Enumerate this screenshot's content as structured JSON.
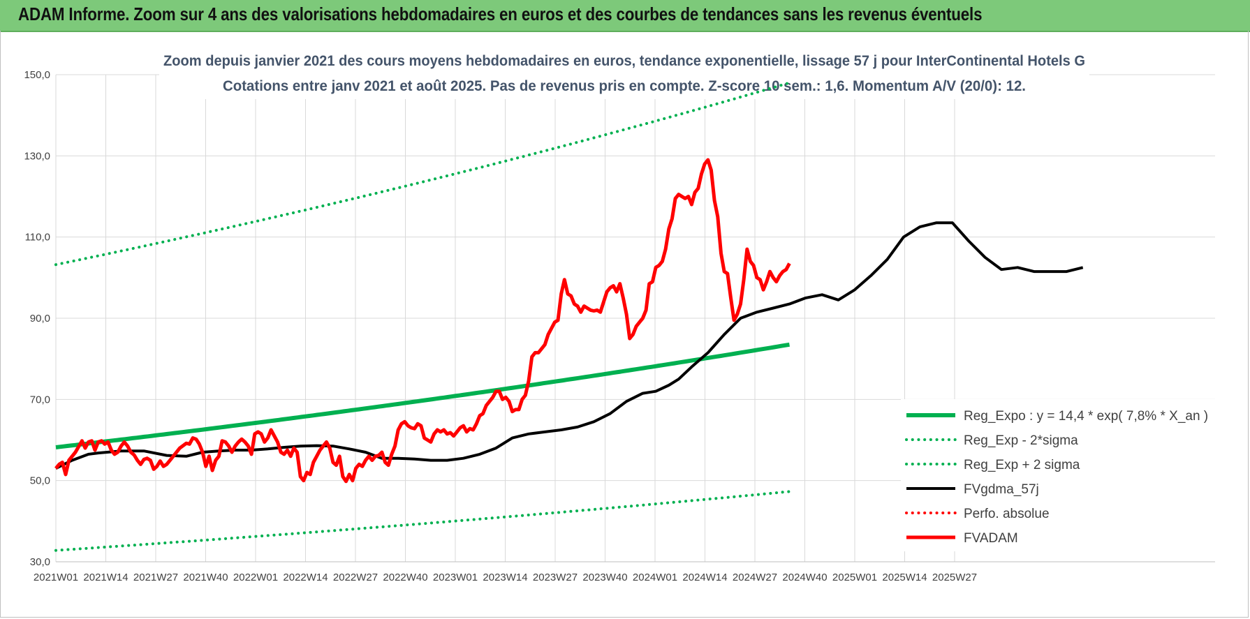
{
  "header": {
    "title": "ADAM Informe. Zoom sur 4 ans des valorisations hebdomadaires en euros et des courbes de tendances sans les revenus éventuels"
  },
  "chart_data": {
    "type": "line",
    "subtitle_line1": "Zoom depuis janvier 2021 des cours moyens hebdomadaires en euros, tendance exponentielle, lissage 57 j pour InterContinental Hotels G",
    "subtitle_line2": "Cotations entre janv 2021 et août 2025.  Pas de revenus pris en compte. Z-score 10 sem.: 1,6. Momentum A/V (20/0): 12.",
    "ylim": [
      30,
      150
    ],
    "y_ticks": [
      "150,0",
      "130,0",
      "110,0",
      "90,0",
      "70,0",
      "50,0",
      "30,0"
    ],
    "y_tick_values": [
      150,
      130,
      110,
      90,
      70,
      50,
      30
    ],
    "x_ticks": [
      "2021W01",
      "2021W14",
      "2021W27",
      "2021W40",
      "2022W01",
      "2022W14",
      "2022W27",
      "2022W40",
      "2023W01",
      "2023W14",
      "2023W27",
      "2023W40",
      "2024W01",
      "2024W14",
      "2024W27",
      "2024W40",
      "2025W01",
      "2025W14",
      "2025W27"
    ],
    "weeks_total": 191,
    "tick_step_weeks": 13,
    "grid": true,
    "legend_position": "bottom-right",
    "colors": {
      "reg_expo": "#00b050",
      "band": "#00b050",
      "gdma": "#000000",
      "perfo": "#ff0000",
      "fvadam": "#ff0000"
    },
    "series": [
      {
        "name": "Reg_Expo : y = 14,4 * exp( 7,8% *  X_an )",
        "style": "solid-green",
        "kind": "exp",
        "start": 58.2,
        "end": 83.5
      },
      {
        "name": "Reg_Exp - 2*sigma",
        "style": "dotted-green",
        "kind": "exp",
        "start": 32.8,
        "end": 47.3
      },
      {
        "name": "Reg_Exp + 2 sigma",
        "style": "dotted-green",
        "kind": "exp",
        "start": 103.2,
        "end": 148.0
      },
      {
        "name": "FVgdma_57j",
        "style": "solid-black",
        "kind": "points",
        "points": [
          [
            0,
            53
          ],
          [
            5,
            55
          ],
          [
            10,
            56.5
          ],
          [
            13,
            56.8
          ],
          [
            20,
            57.3
          ],
          [
            27,
            57.3
          ],
          [
            34,
            56.2
          ],
          [
            40,
            56
          ],
          [
            45,
            57
          ],
          [
            50,
            57.3
          ],
          [
            55,
            57.5
          ],
          [
            60,
            57.5
          ],
          [
            65,
            57.8
          ],
          [
            70,
            58.2
          ],
          [
            75,
            58.5
          ],
          [
            80,
            58.6
          ],
          [
            85,
            58.5
          ],
          [
            90,
            57.8
          ],
          [
            95,
            57
          ],
          [
            100,
            55.5
          ],
          [
            105,
            55.5
          ],
          [
            110,
            55.3
          ],
          [
            115,
            55
          ],
          [
            120,
            55
          ],
          [
            125,
            55.5
          ],
          [
            130,
            56.5
          ],
          [
            135,
            58
          ],
          [
            140,
            60.5
          ],
          [
            145,
            61.5
          ],
          [
            150,
            62
          ],
          [
            155,
            62.5
          ],
          [
            160,
            63.2
          ],
          [
            165,
            64.5
          ],
          [
            170,
            66.5
          ],
          [
            175,
            69.5
          ],
          [
            180,
            71.5
          ],
          [
            184,
            72
          ],
          [
            188,
            73.5
          ],
          [
            191,
            75
          ],
          [
            195,
            78
          ],
          [
            200,
            81.5
          ],
          [
            205,
            86
          ],
          [
            210,
            90
          ],
          [
            215,
            91.5
          ],
          [
            220,
            92.5
          ],
          [
            225,
            93.5
          ],
          [
            230,
            95
          ],
          [
            235,
            95.8
          ],
          [
            240,
            94.5
          ],
          [
            245,
            97
          ],
          [
            250,
            100.5
          ],
          [
            255,
            104.5
          ],
          [
            260,
            110
          ],
          [
            265,
            112.5
          ],
          [
            270,
            113.5
          ],
          [
            275,
            113.5
          ],
          [
            280,
            109
          ],
          [
            285,
            105
          ],
          [
            290,
            102
          ],
          [
            295,
            102.5
          ],
          [
            300,
            101.5
          ],
          [
            305,
            101.5
          ],
          [
            310,
            101.5
          ],
          [
            315,
            102.5
          ]
        ]
      },
      {
        "name": "Perfo. absolue",
        "style": "dotted-red",
        "kind": "none"
      },
      {
        "name": "FVADAM",
        "style": "solid-red",
        "kind": "points",
        "points": [
          [
            0,
            53
          ],
          [
            1,
            54
          ],
          [
            2,
            54.5
          ],
          [
            3,
            51.5
          ],
          [
            4,
            55
          ],
          [
            6,
            57
          ],
          [
            8,
            59.8
          ],
          [
            9,
            58
          ],
          [
            10,
            59.5
          ],
          [
            11,
            59.8
          ],
          [
            12,
            57.5
          ],
          [
            13,
            59.5
          ],
          [
            14,
            59.8
          ],
          [
            15,
            59
          ],
          [
            16,
            59.5
          ],
          [
            17,
            57.5
          ],
          [
            18,
            56.5
          ],
          [
            19,
            57
          ],
          [
            20,
            58.5
          ],
          [
            21,
            59.5
          ],
          [
            22,
            58.5
          ],
          [
            23,
            57
          ],
          [
            24,
            56.3
          ],
          [
            25,
            55
          ],
          [
            26,
            54
          ],
          [
            27,
            55.2
          ],
          [
            28,
            55.5
          ],
          [
            29,
            55
          ],
          [
            30,
            52.8
          ],
          [
            31,
            53.5
          ],
          [
            32,
            54.8
          ],
          [
            33,
            53.5
          ],
          [
            34,
            54
          ],
          [
            36,
            56
          ],
          [
            38,
            58
          ],
          [
            40,
            59.2
          ],
          [
            41,
            59
          ],
          [
            42,
            60.5
          ],
          [
            43,
            60.2
          ],
          [
            44,
            59
          ],
          [
            45,
            57
          ],
          [
            46,
            53.5
          ],
          [
            47,
            56
          ],
          [
            48,
            52.5
          ],
          [
            49,
            55
          ],
          [
            50,
            56
          ],
          [
            51,
            59.8
          ],
          [
            52,
            59.5
          ],
          [
            53,
            58.5
          ],
          [
            54,
            57
          ],
          [
            55,
            58.5
          ],
          [
            56,
            59.5
          ],
          [
            57,
            60.2
          ],
          [
            58,
            59.5
          ],
          [
            59,
            58.5
          ],
          [
            60,
            56.5
          ],
          [
            61,
            61.5
          ],
          [
            62,
            62
          ],
          [
            63,
            61.5
          ],
          [
            64,
            59.5
          ],
          [
            65,
            60.5
          ],
          [
            66,
            62.5
          ],
          [
            67,
            61
          ],
          [
            68,
            59.5
          ],
          [
            69,
            57
          ],
          [
            70,
            56.5
          ],
          [
            71,
            57.5
          ],
          [
            72,
            56
          ],
          [
            73,
            58
          ],
          [
            74,
            57
          ],
          [
            75,
            51
          ],
          [
            76,
            50
          ],
          [
            77,
            52
          ],
          [
            78,
            51.5
          ],
          [
            79,
            54.5
          ],
          [
            80,
            56
          ],
          [
            81,
            57.5
          ],
          [
            82,
            58.5
          ],
          [
            83,
            59.5
          ],
          [
            84,
            58
          ],
          [
            85,
            54.5
          ],
          [
            86,
            53.8
          ],
          [
            87,
            56
          ],
          [
            88,
            51
          ],
          [
            89,
            49.8
          ],
          [
            90,
            51.5
          ],
          [
            91,
            50
          ],
          [
            92,
            53
          ],
          [
            93,
            54
          ],
          [
            94,
            53.5
          ],
          [
            95,
            55
          ],
          [
            96,
            56
          ],
          [
            97,
            55
          ],
          [
            98,
            56
          ],
          [
            99,
            56.2
          ],
          [
            100,
            57
          ],
          [
            101,
            54.5
          ],
          [
            102,
            53.8
          ],
          [
            103,
            56.5
          ],
          [
            104,
            58.5
          ],
          [
            105,
            62.5
          ],
          [
            106,
            64
          ],
          [
            107,
            64.5
          ],
          [
            108,
            63.5
          ],
          [
            109,
            63
          ],
          [
            110,
            62.8
          ],
          [
            111,
            64
          ],
          [
            112,
            63.5
          ],
          [
            113,
            60.5
          ],
          [
            114,
            60
          ],
          [
            115,
            59.5
          ],
          [
            116,
            61.5
          ],
          [
            117,
            62.5
          ],
          [
            118,
            62
          ],
          [
            119,
            62.5
          ],
          [
            120,
            61.5
          ],
          [
            121,
            61.8
          ],
          [
            122,
            61
          ],
          [
            123,
            62
          ],
          [
            124,
            63
          ],
          [
            125,
            63.5
          ],
          [
            126,
            62
          ],
          [
            127,
            62.8
          ],
          [
            128,
            62.5
          ],
          [
            129,
            64
          ],
          [
            130,
            66
          ],
          [
            131,
            66.5
          ],
          [
            132,
            68.5
          ],
          [
            133,
            69.5
          ],
          [
            134,
            70.5
          ],
          [
            135,
            72
          ],
          [
            136,
            72
          ],
          [
            137,
            70
          ],
          [
            138,
            70.5
          ],
          [
            139,
            69.5
          ],
          [
            140,
            67
          ],
          [
            141,
            67.5
          ],
          [
            142,
            67.5
          ],
          [
            143,
            70
          ],
          [
            144,
            71
          ],
          [
            145,
            74.5
          ],
          [
            146,
            80.5
          ],
          [
            147,
            81.5
          ],
          [
            148,
            81.5
          ],
          [
            149,
            82.5
          ],
          [
            150,
            83.5
          ],
          [
            151,
            86
          ],
          [
            152,
            87.5
          ],
          [
            153,
            89
          ],
          [
            154,
            89.5
          ],
          [
            155,
            96
          ],
          [
            156,
            99.5
          ],
          [
            157,
            96
          ],
          [
            158,
            95.5
          ],
          [
            159,
            93.5
          ],
          [
            160,
            93
          ],
          [
            161,
            91.5
          ],
          [
            162,
            93
          ],
          [
            163,
            92.5
          ],
          [
            164,
            92
          ],
          [
            165,
            91.8
          ],
          [
            166,
            92
          ],
          [
            167,
            91.5
          ],
          [
            168,
            94
          ],
          [
            169,
            96.5
          ],
          [
            170,
            97.5
          ],
          [
            171,
            98
          ],
          [
            172,
            96.5
          ],
          [
            173,
            98.5
          ],
          [
            174,
            95
          ],
          [
            175,
            91
          ],
          [
            176,
            85
          ],
          [
            177,
            86
          ],
          [
            178,
            88
          ],
          [
            179,
            89
          ],
          [
            180,
            90
          ],
          [
            181,
            92
          ],
          [
            182,
            98.5
          ],
          [
            183,
            99
          ],
          [
            184,
            102.5
          ],
          [
            185,
            103
          ],
          [
            186,
            104
          ],
          [
            187,
            107
          ],
          [
            188,
            112
          ],
          [
            189,
            114.5
          ],
          [
            190,
            119.5
          ],
          [
            191,
            120.5
          ],
          [
            192,
            120
          ],
          [
            193,
            119.5
          ],
          [
            194,
            120
          ],
          [
            195,
            118
          ],
          [
            196,
            121
          ],
          [
            197,
            122
          ],
          [
            198,
            125.5
          ],
          [
            199,
            128
          ],
          [
            200,
            129
          ],
          [
            201,
            126.5
          ],
          [
            202,
            119
          ],
          [
            203,
            115
          ],
          [
            204,
            106
          ],
          [
            205,
            101.5
          ],
          [
            206,
            101
          ],
          [
            207,
            95
          ],
          [
            208,
            89.5
          ],
          [
            209,
            91
          ],
          [
            210,
            93.5
          ],
          [
            211,
            99.5
          ],
          [
            212,
            107
          ],
          [
            213,
            104
          ],
          [
            214,
            103
          ],
          [
            215,
            100
          ],
          [
            216,
            99.5
          ],
          [
            217,
            97
          ],
          [
            218,
            99
          ],
          [
            219,
            101.5
          ],
          [
            220,
            100
          ],
          [
            221,
            99
          ],
          [
            222,
            100.5
          ],
          [
            223,
            101.5
          ],
          [
            224,
            102
          ],
          [
            225,
            103.5
          ]
        ]
      }
    ]
  }
}
